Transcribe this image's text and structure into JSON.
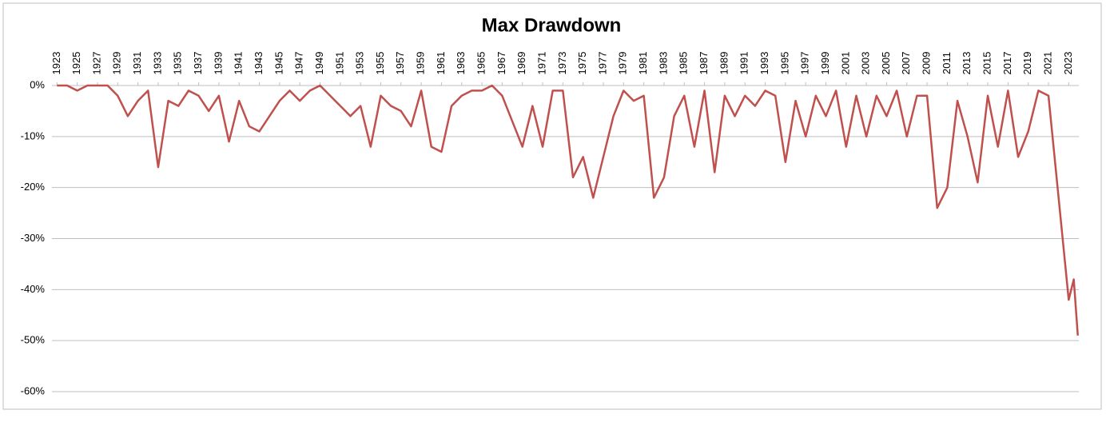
{
  "chart_data": {
    "type": "line",
    "title": "Max Drawdown",
    "x": [
      1923,
      1924,
      1925,
      1926,
      1927,
      1928,
      1929,
      1930,
      1931,
      1932,
      1933,
      1934,
      1935,
      1936,
      1937,
      1938,
      1939,
      1940,
      1941,
      1942,
      1943,
      1944,
      1945,
      1946,
      1947,
      1948,
      1949,
      1950,
      1951,
      1952,
      1953,
      1954,
      1955,
      1956,
      1957,
      1958,
      1959,
      1960,
      1961,
      1962,
      1963,
      1964,
      1965,
      1966,
      1967,
      1968,
      1969,
      1970,
      1971,
      1972,
      1973,
      1974,
      1975,
      1976,
      1977,
      1978,
      1979,
      1980,
      1981,
      1982,
      1983,
      1984,
      1985,
      1986,
      1987,
      1988,
      1989,
      1990,
      1991,
      1992,
      1993,
      1994,
      1995,
      1996,
      1997,
      1998,
      1999,
      2000,
      2001,
      2002,
      2003,
      2004,
      2005,
      2006,
      2007,
      2008,
      2009,
      2010,
      2011,
      2012,
      2013,
      2014,
      2015,
      2016,
      2017,
      2018,
      2019,
      2020,
      2021,
      2022,
      2023,
      2023.5,
      2023.9
    ],
    "series": [
      {
        "name": "Max Drawdown",
        "color": "#c0504d",
        "values": [
          0,
          0,
          -1,
          0,
          0,
          0,
          -2,
          -6,
          -3,
          -1,
          -16,
          -3,
          -4,
          -1,
          -2,
          -5,
          -2,
          -11,
          -3,
          -8,
          -9,
          -6,
          -3,
          -1,
          -3,
          -1,
          0,
          -2,
          -4,
          -6,
          -4,
          -12,
          -2,
          -4,
          -5,
          -8,
          -1,
          -12,
          -13,
          -4,
          -2,
          -1,
          -1,
          0,
          -2,
          -7,
          -12,
          -4,
          -12,
          -1,
          -1,
          -18,
          -14,
          -22,
          -14,
          -6,
          -1,
          -3,
          -2,
          -22,
          -18,
          -6,
          -2,
          -12,
          -1,
          -17,
          -2,
          -6,
          -2,
          -4,
          -1,
          -2,
          -15,
          -3,
          -10,
          -2,
          -6,
          -1,
          -12,
          -2,
          -10,
          -2,
          -6,
          -1,
          -10,
          -2,
          -2,
          -24,
          -20,
          -3,
          -10,
          -19,
          -2,
          -12,
          -1,
          -14,
          -9,
          -1,
          -2,
          -22,
          -42,
          -38,
          -49
        ]
      }
    ],
    "xlim": [
      1922.5,
      2024
    ],
    "xticks": [
      1923,
      1925,
      1927,
      1929,
      1931,
      1933,
      1935,
      1937,
      1939,
      1941,
      1943,
      1945,
      1947,
      1949,
      1951,
      1953,
      1955,
      1957,
      1959,
      1961,
      1963,
      1965,
      1967,
      1969,
      1971,
      1973,
      1975,
      1977,
      1979,
      1981,
      1983,
      1985,
      1987,
      1989,
      1991,
      1993,
      1995,
      1997,
      1999,
      2001,
      2003,
      2005,
      2007,
      2009,
      2011,
      2013,
      2015,
      2017,
      2019,
      2021,
      2023
    ],
    "ylim": [
      -60,
      0
    ],
    "yticks": [
      {
        "value": 0,
        "label": "0%"
      },
      {
        "value": -10,
        "label": "-10%"
      },
      {
        "value": -20,
        "label": "-20%"
      },
      {
        "value": -30,
        "label": "-30%"
      },
      {
        "value": -40,
        "label": "-40%"
      },
      {
        "value": -50,
        "label": "-50%"
      },
      {
        "value": -60,
        "label": "-60%"
      }
    ],
    "grid": true
  }
}
